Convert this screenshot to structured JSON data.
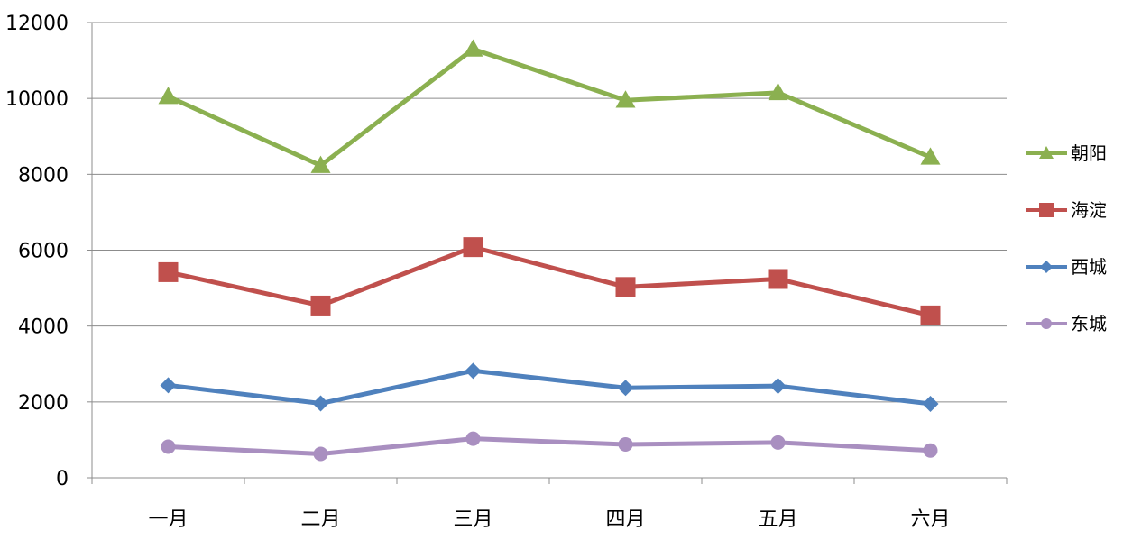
{
  "chart_data": {
    "type": "line",
    "categories": [
      "一月",
      "二月",
      "三月",
      "四月",
      "五月",
      "六月"
    ],
    "ylim": [
      0,
      12000
    ],
    "yticks": [
      0,
      2000,
      4000,
      6000,
      8000,
      10000,
      12000
    ],
    "ytick_labels": [
      "0",
      "2000",
      "4000",
      "6000",
      "8000",
      "10000",
      "12000"
    ],
    "grid": "horizontal",
    "legend_position": "right",
    "series": [
      {
        "name": "朝阳",
        "color": "#8BB050",
        "marker": "triangle",
        "values": [
          10050,
          8230,
          11300,
          9950,
          10150,
          8450
        ]
      },
      {
        "name": "海淀",
        "color": "#C0504D",
        "marker": "square",
        "values": [
          5420,
          4540,
          6080,
          5030,
          5240,
          4280
        ]
      },
      {
        "name": "西城",
        "color": "#4F81BD",
        "marker": "diamond",
        "values": [
          2440,
          1960,
          2820,
          2370,
          2420,
          1950
        ]
      },
      {
        "name": "东城",
        "color": "#A98FC0",
        "marker": "circle",
        "values": [
          820,
          630,
          1030,
          880,
          930,
          720
        ]
      }
    ]
  }
}
